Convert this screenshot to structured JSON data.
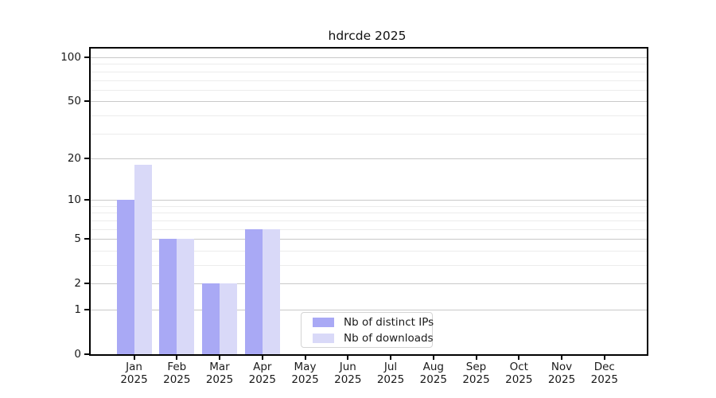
{
  "chart_data": {
    "type": "bar",
    "title": "hdrcde 2025",
    "categories": [
      {
        "month": "Jan",
        "year": "2025"
      },
      {
        "month": "Feb",
        "year": "2025"
      },
      {
        "month": "Mar",
        "year": "2025"
      },
      {
        "month": "Apr",
        "year": "2025"
      },
      {
        "month": "May",
        "year": "2025"
      },
      {
        "month": "Jun",
        "year": "2025"
      },
      {
        "month": "Jul",
        "year": "2025"
      },
      {
        "month": "Aug",
        "year": "2025"
      },
      {
        "month": "Sep",
        "year": "2025"
      },
      {
        "month": "Oct",
        "year": "2025"
      },
      {
        "month": "Nov",
        "year": "2025"
      },
      {
        "month": "Dec",
        "year": "2025"
      }
    ],
    "series": [
      {
        "name": "Nb of distinct IPs",
        "color": "#a9a9f5",
        "values": [
          10,
          5,
          2,
          6,
          0,
          0,
          0,
          0,
          0,
          0,
          0,
          0
        ]
      },
      {
        "name": "Nb of downloads",
        "color": "#d9d9f8",
        "values": [
          18,
          5,
          2,
          6,
          0,
          0,
          0,
          0,
          0,
          0,
          0,
          0
        ]
      }
    ],
    "y_axis": {
      "scale": "log10(value+1)",
      "tick_labels": [
        0,
        1,
        2,
        5,
        10,
        20,
        50,
        100
      ],
      "minor_gridlines": [
        3,
        4,
        6,
        7,
        8,
        9,
        30,
        40,
        60,
        70,
        80,
        90
      ],
      "ylim": [
        0,
        115
      ]
    },
    "xlabel": "",
    "ylabel": "",
    "grid": "on",
    "legend": {
      "position": "lower center"
    },
    "colors": {
      "major_gridline": "#c9c9c9",
      "minor_gridline": "#ececec",
      "axis": "#000000",
      "text": "#1a1a1a"
    }
  }
}
